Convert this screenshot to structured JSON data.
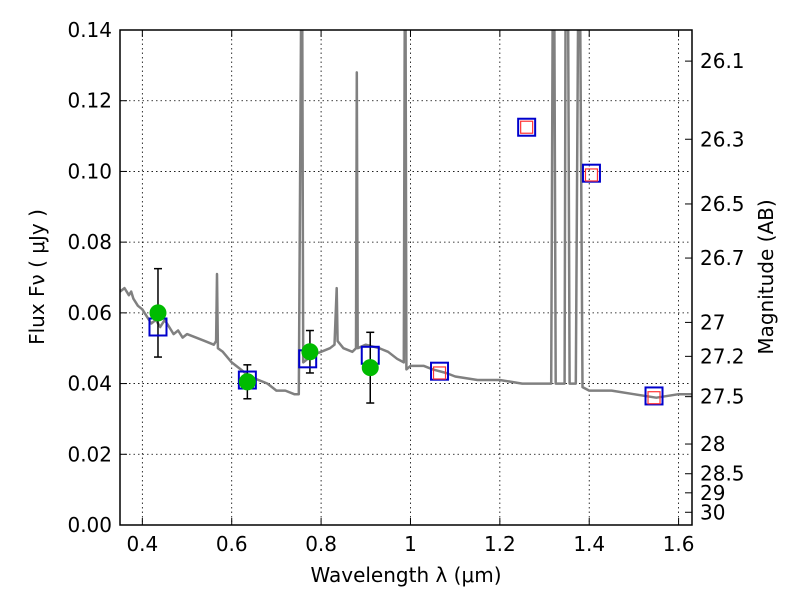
{
  "chart_data": {
    "type": "scatter",
    "xlabel": "Wavelength  λ (μm)",
    "ylabel": "Flux  Fν  ( μJy )",
    "ylabel_right": "Magnitude (AB)",
    "xlim": [
      0.35,
      1.63
    ],
    "ylim": [
      0.0,
      0.14
    ],
    "grid": true,
    "x_ticks": [
      0.4,
      0.6,
      0.8,
      1.0,
      1.2,
      1.4,
      1.6
    ],
    "x_tick_labels": [
      "0.4",
      "0.6",
      "0.8",
      "1",
      "1.2",
      "1.4",
      "1.6"
    ],
    "y_ticks": [
      0.0,
      0.02,
      0.04,
      0.06,
      0.08,
      0.1,
      0.12,
      0.14
    ],
    "y_tick_labels": [
      "0.00",
      "0.02",
      "0.04",
      "0.06",
      "0.08",
      "0.10",
      "0.12",
      "0.14"
    ],
    "right_ticks": [
      {
        "label": "26.1",
        "flux": 0.1312
      },
      {
        "label": "26.3",
        "flux": 0.1091
      },
      {
        "label": "26.5",
        "flux": 0.0908
      },
      {
        "label": "26.7",
        "flux": 0.0755
      },
      {
        "label": "27",
        "flux": 0.0573
      },
      {
        "label": "27.2",
        "flux": 0.0477
      },
      {
        "label": "27.5",
        "flux": 0.0363
      },
      {
        "label": "28",
        "flux": 0.0229
      },
      {
        "label": "28.5",
        "flux": 0.0145
      },
      {
        "label": "29",
        "flux": 0.0091
      },
      {
        "label": "30",
        "flux": 0.0036
      }
    ],
    "series": [
      {
        "kind": "line",
        "color": "#808080",
        "points": [
          [
            0.35,
            0.066
          ],
          [
            0.36,
            0.067
          ],
          [
            0.37,
            0.065
          ],
          [
            0.375,
            0.066
          ],
          [
            0.38,
            0.064
          ],
          [
            0.39,
            0.062
          ],
          [
            0.4,
            0.061
          ],
          [
            0.41,
            0.059
          ],
          [
            0.42,
            0.057
          ],
          [
            0.43,
            0.058
          ],
          [
            0.44,
            0.056
          ],
          [
            0.45,
            0.058
          ],
          [
            0.46,
            0.056
          ],
          [
            0.47,
            0.054
          ],
          [
            0.48,
            0.055
          ],
          [
            0.49,
            0.053
          ],
          [
            0.5,
            0.054
          ],
          [
            0.52,
            0.053
          ],
          [
            0.54,
            0.052
          ],
          [
            0.56,
            0.051
          ],
          [
            0.565,
            0.052
          ],
          [
            0.567,
            0.071
          ],
          [
            0.569,
            0.05
          ],
          [
            0.58,
            0.049
          ],
          [
            0.6,
            0.046
          ],
          [
            0.62,
            0.044
          ],
          [
            0.64,
            0.042
          ],
          [
            0.66,
            0.041
          ],
          [
            0.68,
            0.04
          ],
          [
            0.7,
            0.038
          ],
          [
            0.72,
            0.038
          ],
          [
            0.74,
            0.037
          ],
          [
            0.75,
            0.037
          ],
          [
            0.755,
            0.14
          ],
          [
            0.758,
            0.14
          ],
          [
            0.76,
            0.046
          ],
          [
            0.78,
            0.048
          ],
          [
            0.8,
            0.049
          ],
          [
            0.82,
            0.05
          ],
          [
            0.83,
            0.051
          ],
          [
            0.835,
            0.067
          ],
          [
            0.837,
            0.052
          ],
          [
            0.85,
            0.05
          ],
          [
            0.87,
            0.049
          ],
          [
            0.878,
            0.05
          ],
          [
            0.88,
            0.128
          ],
          [
            0.882,
            0.05
          ],
          [
            0.9,
            0.051
          ],
          [
            0.93,
            0.05
          ],
          [
            0.95,
            0.049
          ],
          [
            0.97,
            0.047
          ],
          [
            0.985,
            0.046
          ],
          [
            0.987,
            0.14
          ],
          [
            0.989,
            0.14
          ],
          [
            0.991,
            0.044
          ],
          [
            1.0,
            0.045
          ],
          [
            1.03,
            0.045
          ],
          [
            1.05,
            0.044
          ],
          [
            1.08,
            0.043
          ],
          [
            1.1,
            0.042
          ],
          [
            1.15,
            0.041
          ],
          [
            1.2,
            0.041
          ],
          [
            1.25,
            0.04
          ],
          [
            1.3,
            0.04
          ],
          [
            1.315,
            0.04
          ],
          [
            1.318,
            0.14
          ],
          [
            1.322,
            0.14
          ],
          [
            1.325,
            0.04
          ],
          [
            1.345,
            0.04
          ],
          [
            1.347,
            0.14
          ],
          [
            1.353,
            0.14
          ],
          [
            1.356,
            0.04
          ],
          [
            1.37,
            0.04
          ],
          [
            1.375,
            0.14
          ],
          [
            1.38,
            0.14
          ],
          [
            1.385,
            0.039
          ],
          [
            1.4,
            0.038
          ],
          [
            1.45,
            0.038
          ],
          [
            1.5,
            0.037
          ],
          [
            1.55,
            0.036
          ],
          [
            1.6,
            0.037
          ],
          [
            1.63,
            0.037
          ]
        ]
      },
      {
        "kind": "errorbar",
        "color": "#00bb00",
        "points": [
          {
            "x": 0.435,
            "y": 0.06,
            "err": 0.0125
          },
          {
            "x": 0.635,
            "y": 0.0405,
            "err": 0.0048
          },
          {
            "x": 0.775,
            "y": 0.049,
            "err": 0.006
          },
          {
            "x": 0.91,
            "y": 0.0445,
            "err": 0.01
          }
        ]
      },
      {
        "kind": "square-marker",
        "color": "#0000cc",
        "points": [
          {
            "x": 0.435,
            "y": 0.056
          },
          {
            "x": 0.635,
            "y": 0.041
          },
          {
            "x": 0.77,
            "y": 0.047
          },
          {
            "x": 0.91,
            "y": 0.048
          },
          {
            "x": 1.065,
            "y": 0.0435
          },
          {
            "x": 1.26,
            "y": 0.1125
          },
          {
            "x": 1.405,
            "y": 0.0995
          },
          {
            "x": 1.545,
            "y": 0.0365
          }
        ]
      },
      {
        "kind": "square-marker",
        "color": "#ff3333",
        "points": [
          {
            "x": 1.065,
            "y": 0.043
          },
          {
            "x": 1.26,
            "y": 0.1125
          },
          {
            "x": 1.405,
            "y": 0.099
          },
          {
            "x": 1.545,
            "y": 0.036
          }
        ]
      }
    ]
  }
}
